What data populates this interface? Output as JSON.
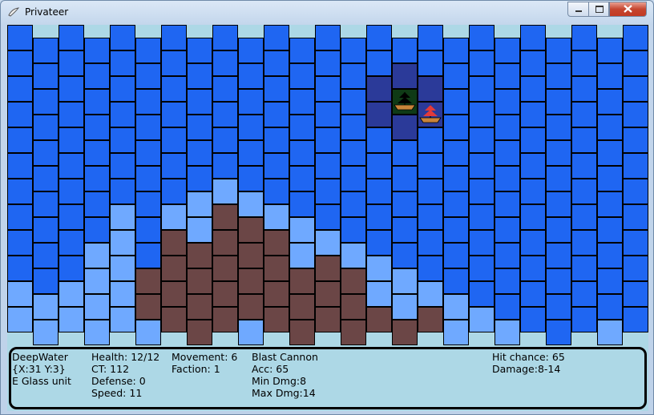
{
  "window": {
    "title": "Privateer"
  },
  "info_panel": {
    "tile": [
      "DeepWater",
      "{X:31 Y:3}",
      "E Glass unit"
    ],
    "unit_stats": [
      "Health: 12/12",
      "CT: 112",
      "Defense: 0",
      "Speed: 11"
    ],
    "movement": [
      "Movement: 6",
      "Faction: 1"
    ],
    "weapon": [
      "Blast Cannon",
      "Acc: 65",
      "Min Dmg:8",
      "Max Dmg:14"
    ],
    "combat": [
      "Hit chance: 65",
      "Damage:8-14"
    ]
  }
}
